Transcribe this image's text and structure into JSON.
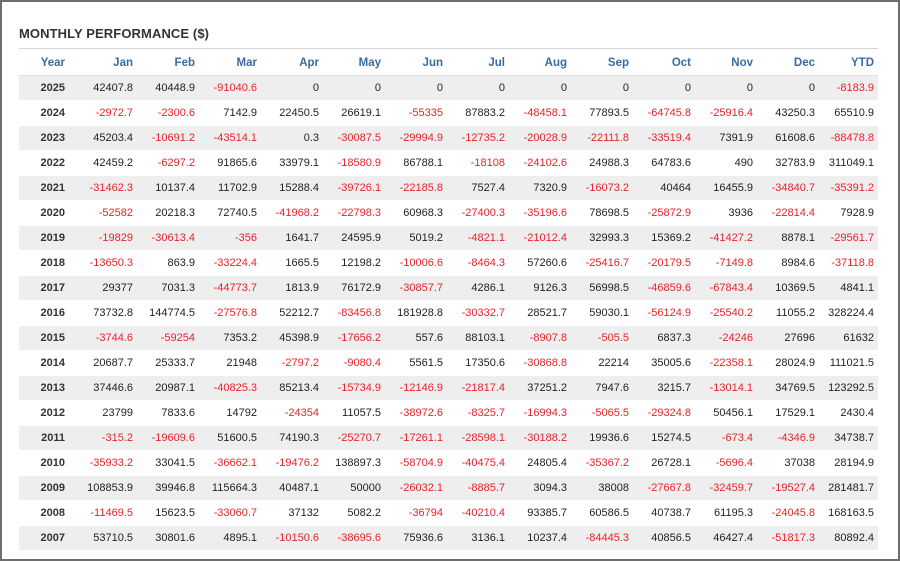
{
  "title": "MONTHLY PERFORMANCE ($)",
  "colors": {
    "header_text": "#3b6aa0",
    "negative": "#e8232b",
    "row_stripe": "#eeeeee"
  },
  "columns": [
    "Year",
    "Jan",
    "Feb",
    "Mar",
    "Apr",
    "May",
    "Jun",
    "Jul",
    "Aug",
    "Sep",
    "Oct",
    "Nov",
    "Dec",
    "YTD"
  ],
  "rows": [
    [
      "2025",
      "42407.8",
      "40448.9",
      "-91040.6",
      "0",
      "0",
      "0",
      "0",
      "0",
      "0",
      "0",
      "0",
      "0",
      "-8183.9"
    ],
    [
      "2024",
      "-2972.7",
      "-2300.6",
      "7142.9",
      "22450.5",
      "26619.1",
      "-55335",
      "87883.2",
      "-48458.1",
      "77893.5",
      "-64745.8",
      "-25916.4",
      "43250.3",
      "65510.9"
    ],
    [
      "2023",
      "45203.4",
      "-10691.2",
      "-43514.1",
      "0.3",
      "-30087.5",
      "-29994.9",
      "-12735.2",
      "-20028.9",
      "-22111.8",
      "-33519.4",
      "7391.9",
      "61608.6",
      "-88478.8"
    ],
    [
      "2022",
      "42459.2",
      "-6297.2",
      "91865.6",
      "33979.1",
      "-18580.9",
      "86788.1",
      "-18108",
      "-24102.6",
      "24988.3",
      "64783.6",
      "490",
      "32783.9",
      "311049.1"
    ],
    [
      "2021",
      "-31462.3",
      "10137.4",
      "11702.9",
      "15288.4",
      "-39726.1",
      "-22185.8",
      "7527.4",
      "7320.9",
      "-16073.2",
      "40464",
      "16455.9",
      "-34840.7",
      "-35391.2"
    ],
    [
      "2020",
      "-52582",
      "20218.3",
      "72740.5",
      "-41968.2",
      "-22798.3",
      "60968.3",
      "-27400.3",
      "-35196.6",
      "78698.5",
      "-25872.9",
      "3936",
      "-22814.4",
      "7928.9"
    ],
    [
      "2019",
      "-19829",
      "-30613.4",
      "-356",
      "1641.7",
      "24595.9",
      "5019.2",
      "-4821.1",
      "-21012.4",
      "32993.3",
      "15369.2",
      "-41427.2",
      "8878.1",
      "-29561.7"
    ],
    [
      "2018",
      "-13650.3",
      "863.9",
      "-33224.4",
      "1665.5",
      "12198.2",
      "-10006.6",
      "-8464.3",
      "57260.6",
      "-25416.7",
      "-20179.5",
      "-7149.8",
      "8984.6",
      "-37118.8"
    ],
    [
      "2017",
      "29377",
      "7031.3",
      "-44773.7",
      "1813.9",
      "76172.9",
      "-30857.7",
      "4286.1",
      "9126.3",
      "56998.5",
      "-46859.6",
      "-67843.4",
      "10369.5",
      "4841.1"
    ],
    [
      "2016",
      "73732.8",
      "144774.5",
      "-27576.8",
      "52212.7",
      "-83456.8",
      "181928.8",
      "-30332.7",
      "28521.7",
      "59030.1",
      "-56124.9",
      "-25540.2",
      "11055.2",
      "328224.4"
    ],
    [
      "2015",
      "-3744.6",
      "-59254",
      "7353.2",
      "45398.9",
      "-17656.2",
      "557.6",
      "88103.1",
      "-8907.8",
      "-505.5",
      "6837.3",
      "-24246",
      "27696",
      "61632"
    ],
    [
      "2014",
      "20687.7",
      "25333.7",
      "21948",
      "-2797.2",
      "-9080.4",
      "5561.5",
      "17350.6",
      "-30868.8",
      "22214",
      "35005.6",
      "-22358.1",
      "28024.9",
      "111021.5"
    ],
    [
      "2013",
      "37446.6",
      "20987.1",
      "-40825.3",
      "85213.4",
      "-15734.9",
      "-12146.9",
      "-21817.4",
      "37251.2",
      "7947.6",
      "3215.7",
      "-13014.1",
      "34769.5",
      "123292.5"
    ],
    [
      "2012",
      "23799",
      "7833.6",
      "14792",
      "-24354",
      "11057.5",
      "-38972.6",
      "-8325.7",
      "-16994.3",
      "-5065.5",
      "-29324.8",
      "50456.1",
      "17529.1",
      "2430.4"
    ],
    [
      "2011",
      "-315.2",
      "-19609.6",
      "51600.5",
      "74190.3",
      "-25270.7",
      "-17261.1",
      "-28598.1",
      "-30188.2",
      "19936.6",
      "15274.5",
      "-673.4",
      "-4346.9",
      "34738.7"
    ],
    [
      "2010",
      "-35933.2",
      "33041.5",
      "-36662.1",
      "-19476.2",
      "138897.3",
      "-58704.9",
      "-40475.4",
      "24805.4",
      "-35367.2",
      "26728.1",
      "-5696.4",
      "37038",
      "28194.9"
    ],
    [
      "2009",
      "108853.9",
      "39946.8",
      "115664.3",
      "40487.1",
      "50000",
      "-26032.1",
      "-8885.7",
      "3094.3",
      "38008",
      "-27667.8",
      "-32459.7",
      "-19527.4",
      "281481.7"
    ],
    [
      "2008",
      "-11469.5",
      "15623.5",
      "-33060.7",
      "37132",
      "5082.2",
      "-36794",
      "-40210.4",
      "93385.7",
      "60586.5",
      "40738.7",
      "61195.3",
      "-24045.8",
      "168163.5"
    ],
    [
      "2007",
      "53710.5",
      "30801.6",
      "4895.1",
      "-10150.6",
      "-38695.6",
      "75936.6",
      "3136.1",
      "10237.4",
      "-84445.3",
      "40856.5",
      "46427.4",
      "-51817.3",
      "80892.4"
    ]
  ]
}
